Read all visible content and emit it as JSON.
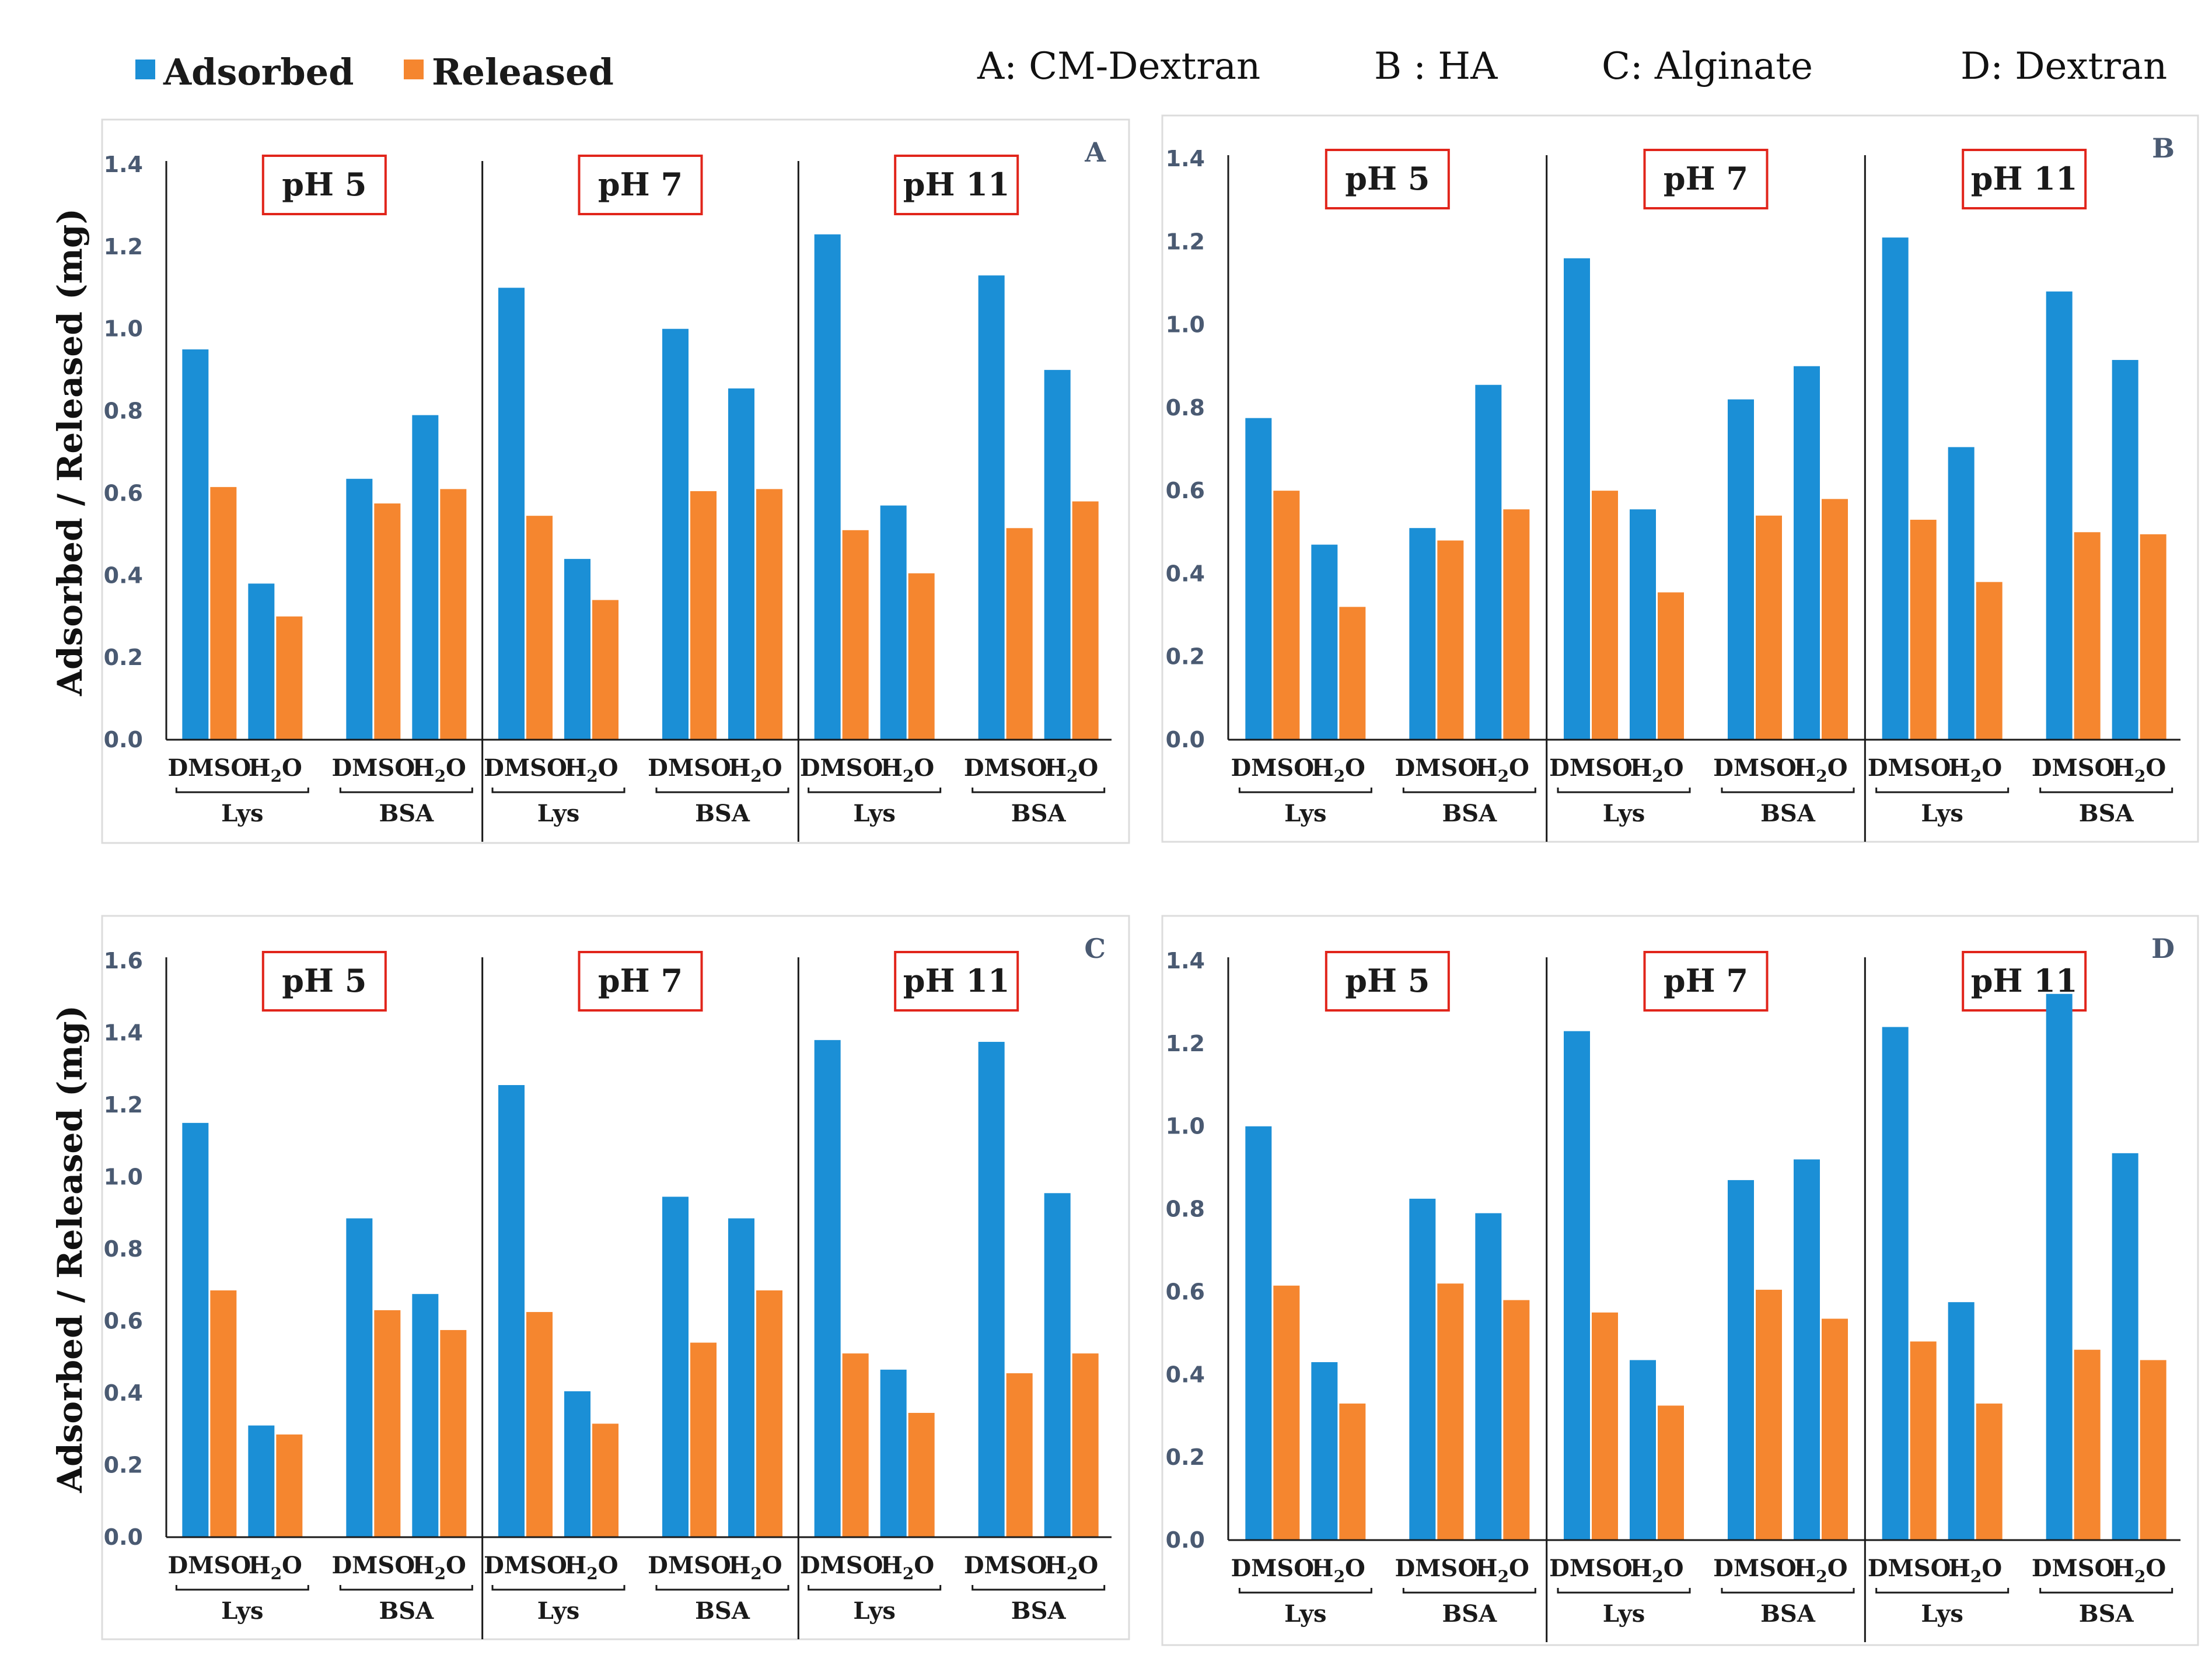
{
  "legend": [
    {
      "label": "Adsorbed",
      "color": "#1b8fd6",
      "icon": "square-marker"
    },
    {
      "label": "Released",
      "color": "#f5862f",
      "icon": "square-marker"
    }
  ],
  "panel_definitions": [
    "A: CM-Dextran",
    "B : HA",
    "C: Alginate",
    "D: Dextran"
  ],
  "y_axis_label": "Adsorbed / Released (mg)",
  "chart_data": [
    {
      "type": "bar",
      "panel": "A",
      "polymer": "CM-Dextran",
      "ylabel": "Adsorbed / Released (mg)",
      "ylim": [
        0,
        1.4
      ],
      "y_ticks": [
        "0.0",
        "0.2",
        "0.4",
        "0.6",
        "0.8",
        "1.0",
        "1.2",
        "1.4"
      ],
      "groups": [
        {
          "ph": "pH 5",
          "proteins": [
            {
              "protein": "Lys",
              "solvents": [
                {
                  "solvent": "DMSO",
                  "adsorbed": 0.95,
                  "released": 0.615
                },
                {
                  "solvent": "H2O",
                  "adsorbed": 0.38,
                  "released": 0.3
                }
              ]
            },
            {
              "protein": "BSA",
              "solvents": [
                {
                  "solvent": "DMSO",
                  "adsorbed": 0.635,
                  "released": 0.575
                },
                {
                  "solvent": "H2O",
                  "adsorbed": 0.79,
                  "released": 0.61
                }
              ]
            }
          ]
        },
        {
          "ph": "pH 7",
          "proteins": [
            {
              "protein": "Lys",
              "solvents": [
                {
                  "solvent": "DMSO",
                  "adsorbed": 1.1,
                  "released": 0.545
                },
                {
                  "solvent": "H2O",
                  "adsorbed": 0.44,
                  "released": 0.34
                }
              ]
            },
            {
              "protein": "BSA",
              "solvents": [
                {
                  "solvent": "DMSO",
                  "adsorbed": 1.0,
                  "released": 0.605
                },
                {
                  "solvent": "H2O",
                  "adsorbed": 0.855,
                  "released": 0.61
                }
              ]
            }
          ]
        },
        {
          "ph": "pH 11",
          "proteins": [
            {
              "protein": "Lys",
              "solvents": [
                {
                  "solvent": "DMSO",
                  "adsorbed": 1.23,
                  "released": 0.51
                },
                {
                  "solvent": "H2O",
                  "adsorbed": 0.57,
                  "released": 0.405
                }
              ]
            },
            {
              "protein": "BSA",
              "solvents": [
                {
                  "solvent": "DMSO",
                  "adsorbed": 1.13,
                  "released": 0.515
                },
                {
                  "solvent": "H2O",
                  "adsorbed": 0.9,
                  "released": 0.58
                }
              ]
            }
          ]
        }
      ]
    },
    {
      "type": "bar",
      "panel": "B",
      "polymer": "HA",
      "ylabel": "",
      "ylim": [
        0,
        1.4
      ],
      "y_ticks": [
        "0.0",
        "0.2",
        "0.4",
        "0.6",
        "0.8",
        "1.0",
        "1.2",
        "1.4"
      ],
      "groups": [
        {
          "ph": "pH 5",
          "proteins": [
            {
              "protein": "Lys",
              "solvents": [
                {
                  "solvent": "DMSO",
                  "adsorbed": 0.775,
                  "released": 0.6
                },
                {
                  "solvent": "H2O",
                  "adsorbed": 0.47,
                  "released": 0.32
                }
              ]
            },
            {
              "protein": "BSA",
              "solvents": [
                {
                  "solvent": "DMSO",
                  "adsorbed": 0.51,
                  "released": 0.48
                },
                {
                  "solvent": "H2O",
                  "adsorbed": 0.855,
                  "released": 0.555
                }
              ]
            }
          ]
        },
        {
          "ph": "pH 7",
          "proteins": [
            {
              "protein": "Lys",
              "solvents": [
                {
                  "solvent": "DMSO",
                  "adsorbed": 1.16,
                  "released": 0.6
                },
                {
                  "solvent": "H2O",
                  "adsorbed": 0.555,
                  "released": 0.355
                }
              ]
            },
            {
              "protein": "BSA",
              "solvents": [
                {
                  "solvent": "DMSO",
                  "adsorbed": 0.82,
                  "released": 0.54
                },
                {
                  "solvent": "H2O",
                  "adsorbed": 0.9,
                  "released": 0.58
                }
              ]
            }
          ]
        },
        {
          "ph": "pH 11",
          "proteins": [
            {
              "protein": "Lys",
              "solvents": [
                {
                  "solvent": "DMSO",
                  "adsorbed": 1.21,
                  "released": 0.53
                },
                {
                  "solvent": "H2O",
                  "adsorbed": 0.705,
                  "released": 0.38
                }
              ]
            },
            {
              "protein": "BSA",
              "solvents": [
                {
                  "solvent": "DMSO",
                  "adsorbed": 1.08,
                  "released": 0.5
                },
                {
                  "solvent": "H2O",
                  "adsorbed": 0.915,
                  "released": 0.495
                }
              ]
            }
          ]
        }
      ]
    },
    {
      "type": "bar",
      "panel": "C",
      "polymer": "Alginate",
      "ylabel": "Adsorbed / Released (mg)",
      "ylim": [
        0,
        1.6
      ],
      "y_ticks": [
        "0.0",
        "0.2",
        "0.4",
        "0.6",
        "0.8",
        "1.0",
        "1.2",
        "1.4",
        "1.6"
      ],
      "groups": [
        {
          "ph": "pH 5",
          "proteins": [
            {
              "protein": "Lys",
              "solvents": [
                {
                  "solvent": "DMSO",
                  "adsorbed": 1.15,
                  "released": 0.685
                },
                {
                  "solvent": "H2O",
                  "adsorbed": 0.31,
                  "released": 0.285
                }
              ]
            },
            {
              "protein": "BSA",
              "solvents": [
                {
                  "solvent": "DMSO",
                  "adsorbed": 0.885,
                  "released": 0.63
                },
                {
                  "solvent": "H2O",
                  "adsorbed": 0.675,
                  "released": 0.575
                }
              ]
            }
          ]
        },
        {
          "ph": "pH 7",
          "proteins": [
            {
              "protein": "Lys",
              "solvents": [
                {
                  "solvent": "DMSO",
                  "adsorbed": 1.255,
                  "released": 0.625
                },
                {
                  "solvent": "H2O",
                  "adsorbed": 0.405,
                  "released": 0.315
                }
              ]
            },
            {
              "protein": "BSA",
              "solvents": [
                {
                  "solvent": "DMSO",
                  "adsorbed": 0.945,
                  "released": 0.54
                },
                {
                  "solvent": "H2O",
                  "adsorbed": 0.885,
                  "released": 0.685
                }
              ]
            }
          ]
        },
        {
          "ph": "pH 11",
          "proteins": [
            {
              "protein": "Lys",
              "solvents": [
                {
                  "solvent": "DMSO",
                  "adsorbed": 1.38,
                  "released": 0.51
                },
                {
                  "solvent": "H2O",
                  "adsorbed": 0.465,
                  "released": 0.345
                }
              ]
            },
            {
              "protein": "BSA",
              "solvents": [
                {
                  "solvent": "DMSO",
                  "adsorbed": 1.375,
                  "released": 0.455
                },
                {
                  "solvent": "H2O",
                  "adsorbed": 0.955,
                  "released": 0.51
                }
              ]
            }
          ]
        }
      ]
    },
    {
      "type": "bar",
      "panel": "D",
      "polymer": "Dextran",
      "ylabel": "",
      "ylim": [
        0,
        1.4
      ],
      "y_ticks": [
        "0.0",
        "0.2",
        "0.4",
        "0.6",
        "0.8",
        "1.0",
        "1.2",
        "1.4"
      ],
      "groups": [
        {
          "ph": "pH 5",
          "proteins": [
            {
              "protein": "Lys",
              "solvents": [
                {
                  "solvent": "DMSO",
                  "adsorbed": 1.0,
                  "released": 0.615
                },
                {
                  "solvent": "H2O",
                  "adsorbed": 0.43,
                  "released": 0.33
                }
              ]
            },
            {
              "protein": "BSA",
              "solvents": [
                {
                  "solvent": "DMSO",
                  "adsorbed": 0.825,
                  "released": 0.62
                },
                {
                  "solvent": "H2O",
                  "adsorbed": 0.79,
                  "released": 0.58
                }
              ]
            }
          ]
        },
        {
          "ph": "pH 7",
          "proteins": [
            {
              "protein": "Lys",
              "solvents": [
                {
                  "solvent": "DMSO",
                  "adsorbed": 1.23,
                  "released": 0.55
                },
                {
                  "solvent": "H2O",
                  "adsorbed": 0.435,
                  "released": 0.325
                }
              ]
            },
            {
              "protein": "BSA",
              "solvents": [
                {
                  "solvent": "DMSO",
                  "adsorbed": 0.87,
                  "released": 0.605
                },
                {
                  "solvent": "H2O",
                  "adsorbed": 0.92,
                  "released": 0.535
                }
              ]
            }
          ]
        },
        {
          "ph": "pH 11",
          "proteins": [
            {
              "protein": "Lys",
              "solvents": [
                {
                  "solvent": "DMSO",
                  "adsorbed": 1.24,
                  "released": 0.48
                },
                {
                  "solvent": "H2O",
                  "adsorbed": 0.575,
                  "released": 0.33
                }
              ]
            },
            {
              "protein": "BSA",
              "solvents": [
                {
                  "solvent": "DMSO",
                  "adsorbed": 1.32,
                  "released": 0.46
                },
                {
                  "solvent": "H2O",
                  "adsorbed": 0.935,
                  "released": 0.435
                }
              ]
            }
          ]
        }
      ]
    }
  ]
}
